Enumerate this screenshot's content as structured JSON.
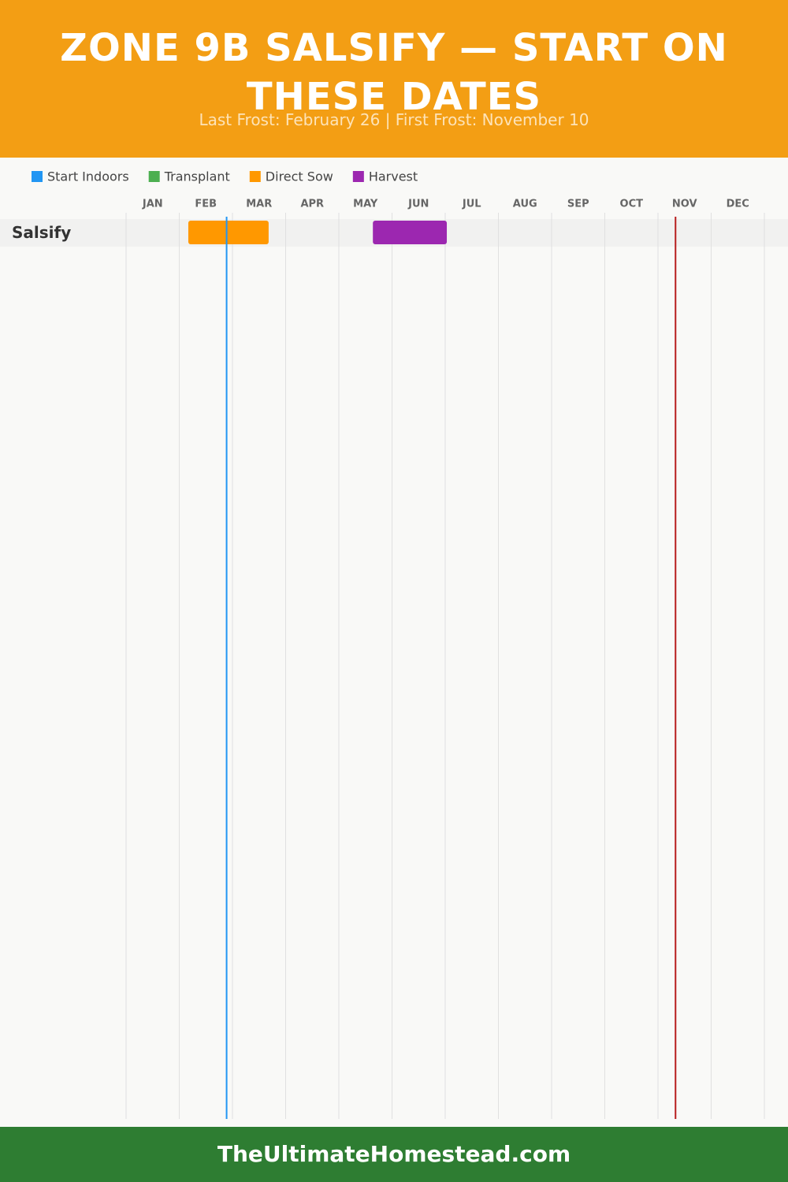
{
  "chart_data": {
    "type": "gantt",
    "title": "ZONE 9B SALSIFY — START ON THESE DATES",
    "subtitle": "Last Frost: February 26 | First Frost: November 10",
    "months": [
      "JAN",
      "FEB",
      "MAR",
      "APR",
      "MAY",
      "JUN",
      "JUL",
      "AUG",
      "SEP",
      "OCT",
      "NOV",
      "DEC"
    ],
    "xlim": [
      0,
      12
    ],
    "categories": [
      "Salsify"
    ],
    "series": [
      {
        "name": "Start Indoors",
        "color": "#2196f3",
        "values": [
          null
        ]
      },
      {
        "name": "Transplant",
        "color": "#4caf50",
        "values": [
          null
        ]
      },
      {
        "name": "Direct Sow",
        "color": "#ff9800",
        "values": [
          [
            1.17,
            2.68
          ]
        ]
      },
      {
        "name": "Harvest",
        "color": "#9c27b0",
        "values": [
          [
            4.64,
            6.03
          ]
        ]
      }
    ],
    "frost_lines": [
      {
        "value": 1.89,
        "color": "#2196f3"
      },
      {
        "value": 10.33,
        "color": "#b71c1c"
      }
    ],
    "grid": true
  },
  "footer": {
    "text": "TheUltimateHomestead.com"
  }
}
